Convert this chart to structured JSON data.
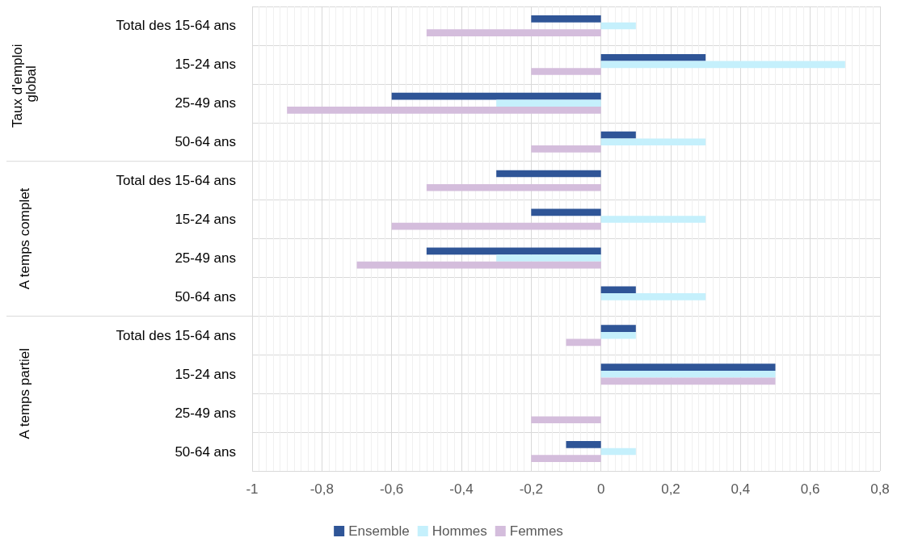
{
  "chart_data": {
    "type": "bar",
    "orientation": "horizontal",
    "categories": [
      "Total des 15-64 ans",
      "15-24 ans",
      "25-49 ans",
      "50-64 ans",
      "Total des 15-64 ans",
      "15-24 ans",
      "25-49 ans",
      "50-64 ans",
      "Total des 15-64 ans",
      "15-24 ans",
      "25-49 ans",
      "50-64 ans"
    ],
    "series": [
      {
        "name": "Ensemble",
        "color": "#2f5597",
        "values": [
          -0.2,
          0.3,
          -0.6,
          0.1,
          -0.3,
          -0.2,
          -0.5,
          0.1,
          0.1,
          0.5,
          0,
          -0.1
        ]
      },
      {
        "name": "Hommes",
        "color": "#c5f0fc",
        "values": [
          0.1,
          0.7,
          -0.3,
          0.3,
          0,
          0.3,
          -0.3,
          0.3,
          0.1,
          0.5,
          0,
          0.1
        ]
      },
      {
        "name": "Femmes",
        "color": "#d4bddc",
        "values": [
          -0.5,
          -0.2,
          -0.9,
          -0.2,
          -0.5,
          -0.6,
          -0.7,
          0,
          -0.1,
          0.5,
          -0.2,
          -0.2
        ]
      }
    ],
    "xlim": [
      -1,
      0.8
    ],
    "xticks": [
      {
        "value": -1,
        "label": "-1"
      },
      {
        "value": -0.8,
        "label": "-0,8"
      },
      {
        "value": -0.6,
        "label": "-0,6"
      },
      {
        "value": -0.4,
        "label": "-0,4"
      },
      {
        "value": -0.2,
        "label": "-0,2"
      },
      {
        "value": 0,
        "label": "0"
      },
      {
        "value": 0.2,
        "label": "0,2"
      },
      {
        "value": 0.4,
        "label": "0,4"
      },
      {
        "value": 0.6,
        "label": "0,6"
      },
      {
        "value": 0.8,
        "label": "0,8"
      }
    ],
    "annotations": [
      "Taux d'emploi global",
      "A temps complet",
      "A temps partiel"
    ],
    "grid": true,
    "legend": "bottom"
  }
}
